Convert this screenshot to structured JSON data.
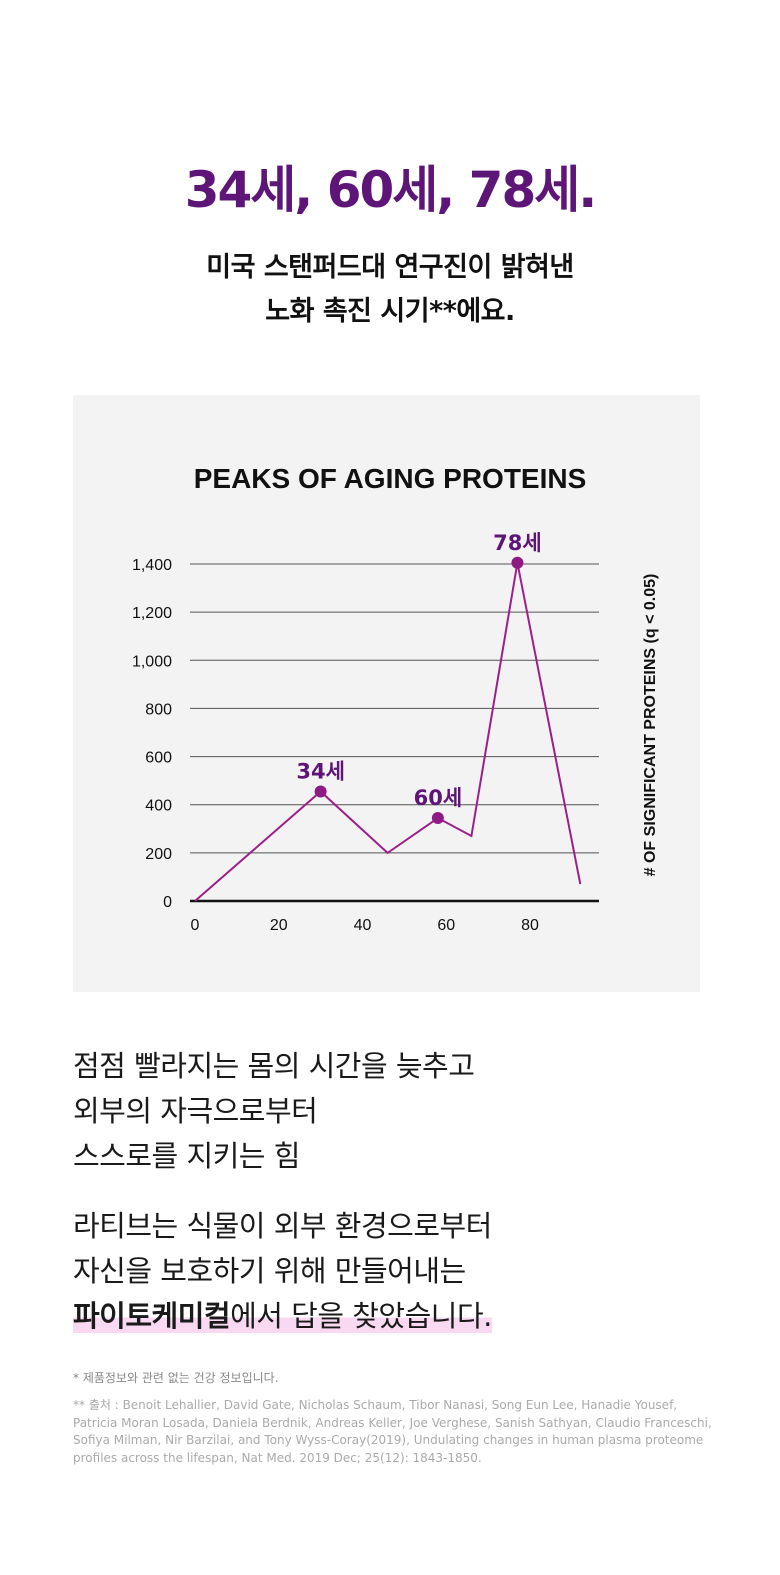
{
  "headline": "34세, 60세, 78세.",
  "subtitle": {
    "line1": "미국 스탠퍼드대 연구진이 밝혀낸",
    "line2": "노화 촉진 시기**에요."
  },
  "colors": {
    "accent": "#5e1578",
    "line": "#9c1f8a",
    "point": "#8e1a86",
    "highlight": "#f8d9f1",
    "panel": "#f3f3f3"
  },
  "chart_data": {
    "type": "line",
    "title": "PEAKS OF AGING PROTEINS",
    "ylabel": "# OF SIGNIFICANT PROTEINS (q < 0.05)",
    "xlabel": "",
    "ylim": [
      0,
      1400
    ],
    "xlim": [
      0,
      96
    ],
    "x_ticks": [
      0,
      20,
      40,
      60,
      80
    ],
    "y_ticks": [
      0,
      200,
      400,
      600,
      800,
      1000,
      1200,
      1400
    ],
    "grid": true,
    "series": [
      {
        "x": [
          0,
          30,
          46,
          58,
          66,
          77,
          92
        ],
        "y": [
          0,
          455,
          200,
          345,
          270,
          1405,
          70
        ]
      }
    ],
    "annotations": [
      {
        "x": 30,
        "y": 455,
        "label": "34세"
      },
      {
        "x": 58,
        "y": 345,
        "label": "60세"
      },
      {
        "x": 77,
        "y": 1405,
        "label": "78세"
      }
    ]
  },
  "body1": {
    "line1": "점점 빨라지는 몸의 시간을 늦추고",
    "line2": "외부의 자극으로부터",
    "line3": "스스로를 지키는 힘"
  },
  "body2": {
    "line1": "라티브는 식물이 외부 환경으로부터",
    "line2": "자신을 보호하기 위해 만들어내는",
    "line3_bold": "파이토케미컬",
    "line3_rest": "에서 답을 찾았습니다."
  },
  "footnote": "* 제품정보와 관련 없는 건강 정보입니다.",
  "source": "** 출처 : Benoit Lehallier, David Gate,  Nicholas Schaum, Tibor Nanasi, Song Eun Lee,  Hanadie Yousef, Patricia Moran Losada, Daniela Berdnik, Andreas Keller, Joe Verghese, Sanish Sathyan, Claudio Franceschi, Sofiya Milman, Nir Barzilai, and Tony Wyss-Coray(2019), Undulating changes in human plasma proteome profiles across the lifespan, Nat Med. 2019 Dec; 25(12): 1843-1850."
}
